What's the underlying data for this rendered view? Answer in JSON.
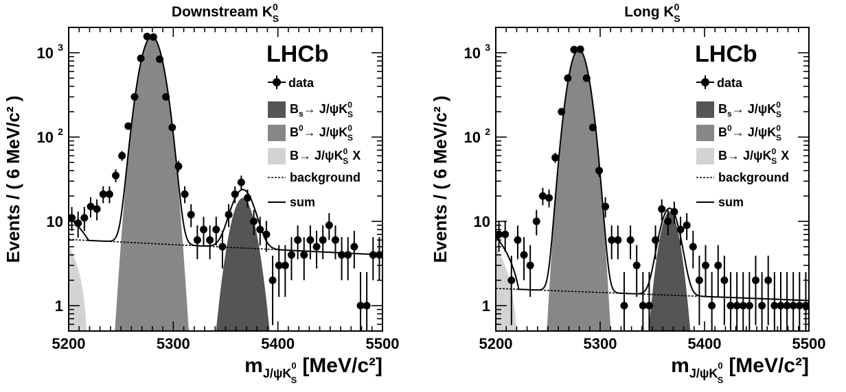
{
  "colors": {
    "bs": "#555555",
    "b0": "#878787",
    "bx": "#d3d3d3",
    "line": "#000000"
  },
  "chart_data": [
    {
      "type": "histogram",
      "title_main": "Downstream K",
      "title_sup": "0",
      "title_sub": "S",
      "ylabel": "Events / ( 6 MeV/c² )",
      "xlabel": "m",
      "xlabel_sub": "J/ψK",
      "xlabel_sub_sup": "0",
      "xlabel_sub_sub": "S",
      "xlabel_unit": "[MeV/c²]",
      "yscale": "log",
      "xlim": [
        5200,
        5500
      ],
      "ylim": [
        0.5,
        2000
      ],
      "xticks": [
        "5200",
        "5300",
        "5400",
        "5500"
      ],
      "yticks": [
        {
          "value": 1,
          "label": "1"
        },
        {
          "value": 10,
          "label": "10"
        },
        {
          "value": 100,
          "label": "10",
          "sup": "2"
        },
        {
          "value": 1000,
          "label": "10",
          "sup": "3"
        }
      ],
      "lhcb_label": "LHCb",
      "legend": {
        "data": "data",
        "bs": {
          "a": "B",
          "a_sub": "s",
          "b": "→ J/ψK",
          "b_sup": "0",
          "b_sub": "S",
          "c": ""
        },
        "b0": {
          "a": "B",
          "a_sup": "0",
          "b": "→ J/ψK",
          "b_sup": "0",
          "b_sub": "S",
          "c": ""
        },
        "bx": {
          "a": "B",
          "b": "→ J/ψK",
          "b_sup": "0",
          "b_sub": "S",
          "c": "X"
        },
        "background": "background",
        "sum": "sum"
      },
      "b0_peak": {
        "mean": 5279.5,
        "sigma": 8.8,
        "amplitude": 1560
      },
      "bs_peak": {
        "mean": 5366.5,
        "sigma": 9.5,
        "amplitude": 19
      },
      "bx_component": {
        "amplitude_at_5200": 5.2,
        "end": 5219
      },
      "background_line": {
        "at_5200": 6.1,
        "at_5500": 4.0
      },
      "data_points": [
        {
          "x": 5203,
          "y": 11
        },
        {
          "x": 5209,
          "y": 9.5
        },
        {
          "x": 5215,
          "y": 11
        },
        {
          "x": 5221,
          "y": 15
        },
        {
          "x": 5227,
          "y": 14
        },
        {
          "x": 5233,
          "y": 21
        },
        {
          "x": 5239,
          "y": 21
        },
        {
          "x": 5245,
          "y": 35
        },
        {
          "x": 5251,
          "y": 60
        },
        {
          "x": 5257,
          "y": 135
        },
        {
          "x": 5263,
          "y": 300
        },
        {
          "x": 5269,
          "y": 860
        },
        {
          "x": 5275,
          "y": 1560
        },
        {
          "x": 5281,
          "y": 1540
        },
        {
          "x": 5287,
          "y": 840
        },
        {
          "x": 5293,
          "y": 300
        },
        {
          "x": 5299,
          "y": 130
        },
        {
          "x": 5305,
          "y": 45
        },
        {
          "x": 5311,
          "y": 21
        },
        {
          "x": 5317,
          "y": 12
        },
        {
          "x": 5323,
          "y": 6
        },
        {
          "x": 5329,
          "y": 8
        },
        {
          "x": 5335,
          "y": 6
        },
        {
          "x": 5341,
          "y": 8
        },
        {
          "x": 5347,
          "y": 5
        },
        {
          "x": 5353,
          "y": 12
        },
        {
          "x": 5359,
          "y": 21
        },
        {
          "x": 5365,
          "y": 29
        },
        {
          "x": 5371,
          "y": 19
        },
        {
          "x": 5377,
          "y": 10
        },
        {
          "x": 5383,
          "y": 8
        },
        {
          "x": 5389,
          "y": 7
        },
        {
          "x": 5395,
          "y": 2
        },
        {
          "x": 5401,
          "y": 3
        },
        {
          "x": 5407,
          "y": 3
        },
        {
          "x": 5413,
          "y": 4
        },
        {
          "x": 5419,
          "y": 6
        },
        {
          "x": 5425,
          "y": 4
        },
        {
          "x": 5431,
          "y": 6
        },
        {
          "x": 5437,
          "y": 5
        },
        {
          "x": 5443,
          "y": 6
        },
        {
          "x": 5449,
          "y": 9
        },
        {
          "x": 5455,
          "y": 6
        },
        {
          "x": 5461,
          "y": 4
        },
        {
          "x": 5467,
          "y": 4
        },
        {
          "x": 5473,
          "y": 5
        },
        {
          "x": 5479,
          "y": 1
        },
        {
          "x": 5485,
          "y": 1
        },
        {
          "x": 5491,
          "y": 4
        },
        {
          "x": 5497,
          "y": 4
        }
      ]
    },
    {
      "type": "histogram",
      "title_main": "Long K",
      "title_sup": "0",
      "title_sub": "S",
      "ylabel": "Events / ( 6 MeV/c² )",
      "xlabel": "m",
      "xlabel_sub": "J/ψK",
      "xlabel_sub_sup": "0",
      "xlabel_sub_sub": "S",
      "xlabel_unit": "[MeV/c²]",
      "yscale": "log",
      "xlim": [
        5200,
        5500
      ],
      "ylim": [
        0.5,
        2000
      ],
      "xticks": [
        "5200",
        "5300",
        "5400",
        "5500"
      ],
      "yticks": [
        {
          "value": 1,
          "label": "1"
        },
        {
          "value": 10,
          "label": "10"
        },
        {
          "value": 100,
          "label": "10",
          "sup": "2"
        },
        {
          "value": 1000,
          "label": "10",
          "sup": "3"
        }
      ],
      "lhcb_label": "LHCb",
      "legend": {
        "data": "data",
        "bs": {
          "a": "B",
          "a_sub": "s",
          "b": "→ J/ψK",
          "b_sup": "0",
          "b_sub": "S",
          "c": ""
        },
        "b0": {
          "a": "B",
          "a_sup": "0",
          "b": "→ J/ψK",
          "b_sup": "0",
          "b_sub": "S",
          "c": ""
        },
        "bx": {
          "a": "B",
          "b": "→ J/ψK",
          "b_sup": "0",
          "b_sub": "S",
          "c": "X"
        },
        "background": "background",
        "sum": "sum"
      },
      "b0_peak": {
        "mean": 5279.5,
        "sigma": 7.8,
        "amplitude": 1100
      },
      "bs_peak": {
        "mean": 5366.5,
        "sigma": 7.8,
        "amplitude": 13
      },
      "bx_component": {
        "amplitude_at_5200": 5.0,
        "end": 5222
      },
      "background_line": {
        "at_5200": 1.6,
        "at_5500": 1.15
      },
      "data_points": [
        {
          "x": 5203,
          "y": 7
        },
        {
          "x": 5209,
          "y": 7
        },
        {
          "x": 5215,
          "y": 2
        },
        {
          "x": 5221,
          "y": 6
        },
        {
          "x": 5227,
          "y": 4
        },
        {
          "x": 5233,
          "y": 3
        },
        {
          "x": 5239,
          "y": 10
        },
        {
          "x": 5245,
          "y": 20
        },
        {
          "x": 5251,
          "y": 19
        },
        {
          "x": 5257,
          "y": 57
        },
        {
          "x": 5263,
          "y": 200
        },
        {
          "x": 5269,
          "y": 500
        },
        {
          "x": 5275,
          "y": 1090
        },
        {
          "x": 5281,
          "y": 1100
        },
        {
          "x": 5287,
          "y": 500
        },
        {
          "x": 5293,
          "y": 130
        },
        {
          "x": 5299,
          "y": 40
        },
        {
          "x": 5305,
          "y": 15
        },
        {
          "x": 5311,
          "y": 6
        },
        {
          "x": 5317,
          "y": 6
        },
        {
          "x": 5323,
          "y": 1
        },
        {
          "x": 5329,
          "y": 6
        },
        {
          "x": 5335,
          "y": 3
        },
        {
          "x": 5341,
          "y": 1
        },
        {
          "x": 5347,
          "y": 1
        },
        {
          "x": 5353,
          "y": 6
        },
        {
          "x": 5359,
          "y": 14
        },
        {
          "x": 5365,
          "y": 10
        },
        {
          "x": 5371,
          "y": 13
        },
        {
          "x": 5377,
          "y": 8
        },
        {
          "x": 5383,
          "y": 9
        },
        {
          "x": 5389,
          "y": 5
        },
        {
          "x": 5395,
          "y": 2
        },
        {
          "x": 5401,
          "y": 3
        },
        {
          "x": 5407,
          "y": 1
        },
        {
          "x": 5413,
          "y": 3
        },
        {
          "x": 5419,
          "y": 2
        },
        {
          "x": 5425,
          "y": 1
        },
        {
          "x": 5431,
          "y": 1
        },
        {
          "x": 5437,
          "y": 1
        },
        {
          "x": 5443,
          "y": 1
        },
        {
          "x": 5449,
          "y": 2
        },
        {
          "x": 5455,
          "y": 1
        },
        {
          "x": 5461,
          "y": 2
        },
        {
          "x": 5467,
          "y": 1
        },
        {
          "x": 5473,
          "y": 1
        },
        {
          "x": 5479,
          "y": 1
        },
        {
          "x": 5485,
          "y": 1
        },
        {
          "x": 5491,
          "y": 1
        },
        {
          "x": 5497,
          "y": 1
        }
      ]
    }
  ]
}
